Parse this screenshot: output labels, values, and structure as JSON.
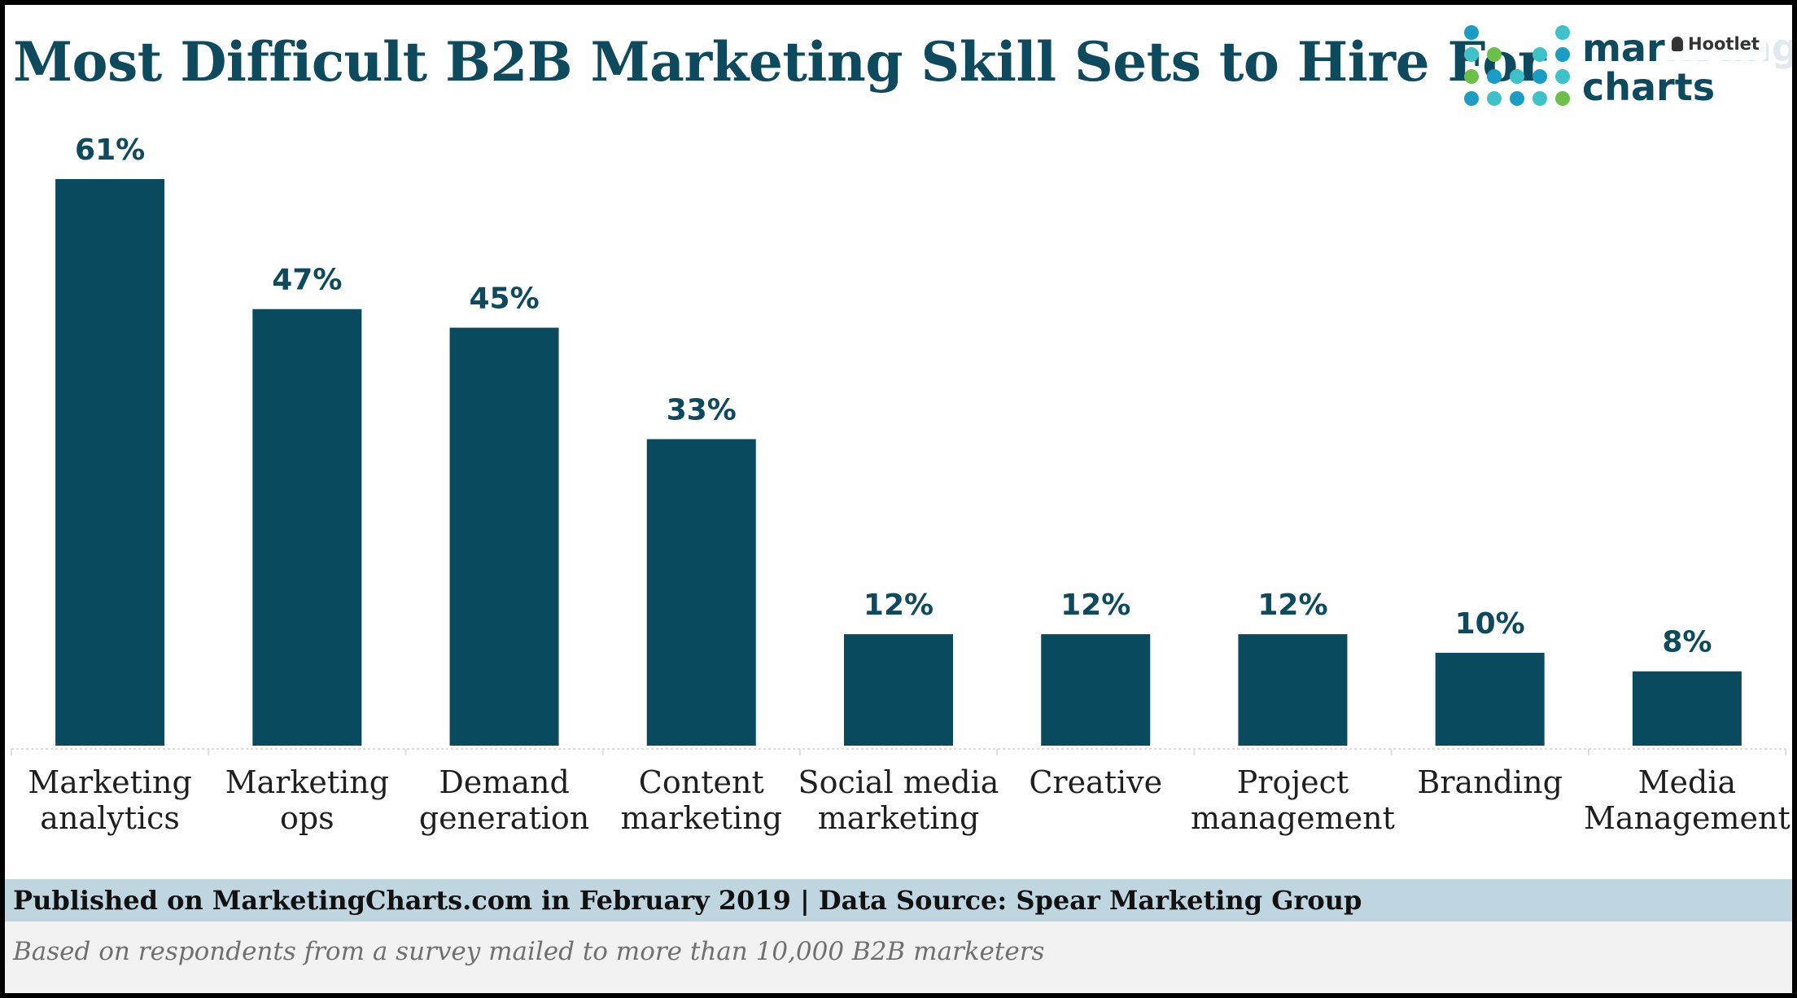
{
  "chart_data": {
    "type": "bar",
    "title": "Most Difficult B2B Marketing Skill Sets to Hire For",
    "categories": [
      [
        "Marketing",
        "analytics"
      ],
      [
        "Marketing",
        "ops"
      ],
      [
        "Demand",
        "generation"
      ],
      [
        "Content",
        "marketing"
      ],
      [
        "Social media",
        "marketing"
      ],
      [
        "Creative"
      ],
      [
        "Project",
        "management"
      ],
      [
        "Branding"
      ],
      [
        "Media",
        "Management"
      ]
    ],
    "values": [
      61,
      47,
      45,
      33,
      12,
      12,
      12,
      10,
      8
    ],
    "value_labels": [
      "61%",
      "47%",
      "45%",
      "33%",
      "12%",
      "12%",
      "12%",
      "10%",
      "8%"
    ],
    "unit": "%",
    "ylim": [
      0,
      61
    ],
    "grid": false,
    "legend": "none",
    "bar_color": "#0a4a5f"
  },
  "logo": {
    "word_line1_visible": "mar",
    "word_line1_faded": "keting",
    "word_line2": "charts",
    "dot_colors": [
      "#1a9cc4",
      "#3fc1c9",
      "#6cc04a",
      "#1a9cc4",
      "#3fc1c9"
    ],
    "icon": "dot-grid-logo-icon"
  },
  "overlay": {
    "hootlet_label": "Hootlet",
    "icon": "owl-icon"
  },
  "footer": {
    "published": "Published on MarketingCharts.com in February 2019 | Data Source: Spear Marketing Group",
    "note": "Based on respondents from a survey mailed to more than 10,000 B2B marketers"
  },
  "colors": {
    "title": "#0d4a5e",
    "footer_band": "#bfd5df",
    "note_band": "#f2f2f2"
  }
}
